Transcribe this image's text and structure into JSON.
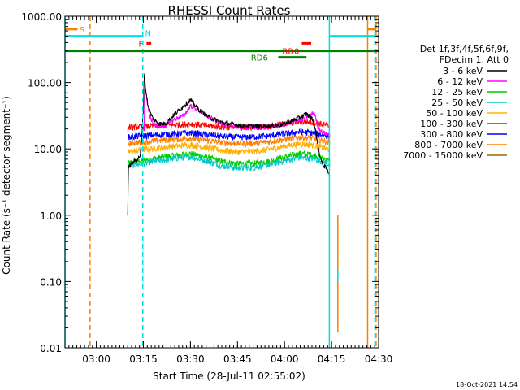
{
  "chart_data": {
    "type": "line",
    "title": "RHESSI Count Rates",
    "xlabel": "Start Time (28-Jul-11 02:55:02)",
    "ylabel": "Count Rate (s⁻¹ detector segment⁻¹)",
    "y_scale": "log",
    "ylim": [
      0.01,
      1000
    ],
    "xlim_minutes": [
      -5,
      95
    ],
    "x_ticks": [
      {
        "value": 5,
        "label": "03:00"
      },
      {
        "value": 20,
        "label": "03:15"
      },
      {
        "value": 35,
        "label": "03:30"
      },
      {
        "value": 50,
        "label": "03:45"
      },
      {
        "value": 65,
        "label": "04:00"
      },
      {
        "value": 80,
        "label": "04:15"
      },
      {
        "value": 95,
        "label": "04:30"
      }
    ],
    "y_ticks": [
      {
        "value": 0.01,
        "label": "0.01"
      },
      {
        "value": 0.1,
        "label": "0.10"
      },
      {
        "value": 1,
        "label": "1.00"
      },
      {
        "value": 10,
        "label": "10.00"
      },
      {
        "value": 100,
        "label": "100.00"
      },
      {
        "value": 1000,
        "label": "1000.00"
      }
    ],
    "legend_header": [
      "Det 1f,3f,4f,5f,6f,9f,",
      "FDecim 1, Att 0"
    ],
    "legend_position": "right",
    "grid": false,
    "series": [
      {
        "name": "3 - 6 keV",
        "color": "#000000",
        "points": [
          [
            15,
            1
          ],
          [
            15.2,
            5
          ],
          [
            16,
            6
          ],
          [
            17,
            6.5
          ],
          [
            18,
            7
          ],
          [
            19,
            8
          ],
          [
            19.5,
            15
          ],
          [
            20,
            40
          ],
          [
            20.3,
            150
          ],
          [
            20.7,
            80
          ],
          [
            21.5,
            45
          ],
          [
            22.5,
            32
          ],
          [
            23.5,
            27
          ],
          [
            25,
            24
          ],
          [
            27,
            24
          ],
          [
            29,
            30
          ],
          [
            31,
            37
          ],
          [
            33,
            45
          ],
          [
            35,
            55
          ],
          [
            36,
            48
          ],
          [
            38,
            38
          ],
          [
            41,
            30
          ],
          [
            45,
            25
          ],
          [
            50,
            23
          ],
          [
            55,
            22
          ],
          [
            60,
            22
          ],
          [
            64,
            23
          ],
          [
            67,
            26
          ],
          [
            70,
            30
          ],
          [
            72,
            34
          ],
          [
            74,
            28
          ],
          [
            75,
            18
          ],
          [
            76,
            9
          ],
          [
            77,
            6
          ],
          [
            78.5,
            5
          ],
          [
            79.5,
            4
          ]
        ]
      },
      {
        "name": "6 - 12 keV",
        "color": "#ff00ff",
        "points": [
          [
            20.2,
            20
          ],
          [
            20.5,
            90
          ],
          [
            21,
            60
          ],
          [
            22,
            30
          ],
          [
            24,
            22
          ],
          [
            27,
            22
          ],
          [
            30,
            28
          ],
          [
            33,
            32
          ],
          [
            35,
            45
          ],
          [
            37,
            40
          ],
          [
            40,
            32
          ],
          [
            44,
            25
          ],
          [
            48,
            22
          ],
          [
            53,
            21
          ],
          [
            58,
            21
          ],
          [
            62,
            22
          ],
          [
            66,
            24
          ],
          [
            70,
            27
          ],
          [
            73,
            32
          ],
          [
            74.5,
            36
          ],
          [
            75.5,
            22
          ],
          [
            77,
            18
          ],
          [
            79.5,
            16
          ]
        ]
      },
      {
        "name": "12 - 25 keV",
        "color": "#00cc00",
        "points": [
          [
            15,
            6
          ],
          [
            18,
            6.5
          ],
          [
            22,
            7
          ],
          [
            26,
            7.5
          ],
          [
            30,
            8
          ],
          [
            35,
            8.5
          ],
          [
            40,
            7.5
          ],
          [
            45,
            6.5
          ],
          [
            50,
            6
          ],
          [
            55,
            6
          ],
          [
            60,
            6.5
          ],
          [
            65,
            7.5
          ],
          [
            70,
            8.5
          ],
          [
            75,
            8
          ],
          [
            78,
            7
          ],
          [
            79.5,
            6.5
          ]
        ]
      },
      {
        "name": "25 - 50 keV",
        "color": "#00c8c8",
        "points": [
          [
            15,
            5.5
          ],
          [
            18,
            5.8
          ],
          [
            22,
            6.2
          ],
          [
            26,
            6.7
          ],
          [
            30,
            7.2
          ],
          [
            35,
            7.6
          ],
          [
            40,
            6.6
          ],
          [
            45,
            5.6
          ],
          [
            50,
            5.1
          ],
          [
            55,
            5.2
          ],
          [
            60,
            5.8
          ],
          [
            65,
            6.6
          ],
          [
            70,
            7.4
          ],
          [
            75,
            7
          ],
          [
            78,
            6.2
          ],
          [
            79.5,
            5.8
          ]
        ]
      },
      {
        "name": "50 - 100 keV",
        "color": "#ffb000",
        "points": [
          [
            15,
            9
          ],
          [
            18,
            9.5
          ],
          [
            22,
            10
          ],
          [
            26,
            10.5
          ],
          [
            30,
            11
          ],
          [
            35,
            11.5
          ],
          [
            40,
            10.5
          ],
          [
            45,
            9.5
          ],
          [
            50,
            9
          ],
          [
            55,
            9.2
          ],
          [
            60,
            9.8
          ],
          [
            65,
            11
          ],
          [
            70,
            12
          ],
          [
            75,
            11.2
          ],
          [
            78,
            10.2
          ],
          [
            79.5,
            9.8
          ]
        ]
      },
      {
        "name": "100 - 300 keV",
        "color": "#ff0000",
        "points": [
          [
            15,
            21
          ],
          [
            18,
            21.5
          ],
          [
            22,
            22
          ],
          [
            26,
            22.5
          ],
          [
            30,
            23
          ],
          [
            35,
            24
          ],
          [
            40,
            22.5
          ],
          [
            45,
            21.5
          ],
          [
            50,
            21
          ],
          [
            55,
            21.5
          ],
          [
            60,
            22
          ],
          [
            65,
            24
          ],
          [
            70,
            26
          ],
          [
            75,
            25
          ],
          [
            78,
            23
          ],
          [
            79.5,
            22
          ]
        ]
      },
      {
        "name": "300 - 800 keV",
        "color": "#0000ff",
        "points": [
          [
            15,
            15
          ],
          [
            18,
            15.5
          ],
          [
            22,
            16
          ],
          [
            26,
            16.5
          ],
          [
            30,
            17
          ],
          [
            35,
            17.5
          ],
          [
            40,
            16.5
          ],
          [
            45,
            15.5
          ],
          [
            50,
            15
          ],
          [
            55,
            15.2
          ],
          [
            60,
            15.8
          ],
          [
            65,
            17
          ],
          [
            70,
            18
          ],
          [
            75,
            17.2
          ],
          [
            78,
            16
          ],
          [
            79.5,
            15.5
          ]
        ]
      },
      {
        "name": "800 - 7000 keV",
        "color": "#ff8000",
        "points": [
          [
            15,
            12
          ],
          [
            18,
            12.5
          ],
          [
            22,
            13
          ],
          [
            26,
            13.5
          ],
          [
            30,
            14
          ],
          [
            35,
            14.5
          ],
          [
            40,
            13.5
          ],
          [
            45,
            12.5
          ],
          [
            50,
            12
          ],
          [
            55,
            12.2
          ],
          [
            60,
            12.8
          ],
          [
            65,
            14
          ],
          [
            70,
            15
          ],
          [
            75,
            14.2
          ],
          [
            78,
            13
          ],
          [
            79.5,
            12.5
          ]
        ]
      },
      {
        "name": "7000 - 15000 keV",
        "color": "#996600",
        "points": []
      }
    ],
    "annotations": {
      "vertical_lines": [
        {
          "x": -5,
          "color": "#00e0e0",
          "style": "solid"
        },
        {
          "x": 3,
          "color": "#ff8000",
          "style": "dashed"
        },
        {
          "x": 19.8,
          "color": "#00e0e0",
          "style": "dashed"
        },
        {
          "x": 79.3,
          "color": "#00e0e0",
          "style": "solid"
        },
        {
          "x": 82,
          "color": "#ff8000",
          "style": "solid",
          "bottom": 0.017,
          "top": 1
        },
        {
          "x": 82,
          "color": "#00e0e0",
          "style": "solid",
          "bottom": 0.1,
          "top": 0.15
        },
        {
          "x": 91.5,
          "color": "#ff8000",
          "style": "solid"
        },
        {
          "x": 93.8,
          "color": "#00e0e0",
          "style": "dashed"
        },
        {
          "x": 94.2,
          "color": "#ff8000",
          "style": "dashed"
        }
      ],
      "horizontal_bars": [
        {
          "x0": -5,
          "x1": 19.8,
          "y": 500,
          "color": "#00e0e0",
          "label": "N",
          "label_x": 21.5,
          "label_y": 560
        },
        {
          "x0": -5,
          "x1": -1,
          "y": 640,
          "color": "#ff8000",
          "label": "S",
          "label_x": 0.5,
          "label_y": 640
        },
        {
          "x0": 21,
          "x1": 22.5,
          "y": 390,
          "color": "#ff0000",
          "label": "F",
          "label_x": 19.2,
          "label_y": 390
        },
        {
          "x0": -5,
          "x1": 95,
          "y": 300,
          "color": "#008000"
        },
        {
          "x0": 63,
          "x1": 72,
          "y": 240,
          "color": "#008000",
          "label": "RD6",
          "label_x": 57,
          "label_y": 240
        },
        {
          "x0": 70.5,
          "x1": 73.5,
          "y": 390,
          "color": "#ff0000",
          "label": "RD0",
          "label_x": 67,
          "label_y": 300
        },
        {
          "x0": 79.3,
          "x1": 95,
          "y": 500,
          "color": "#00e0e0"
        },
        {
          "x0": 91.5,
          "x1": 94.2,
          "y": 640,
          "color": "#ff8000"
        }
      ]
    },
    "timestamp": "18-Oct-2021 14:54"
  }
}
